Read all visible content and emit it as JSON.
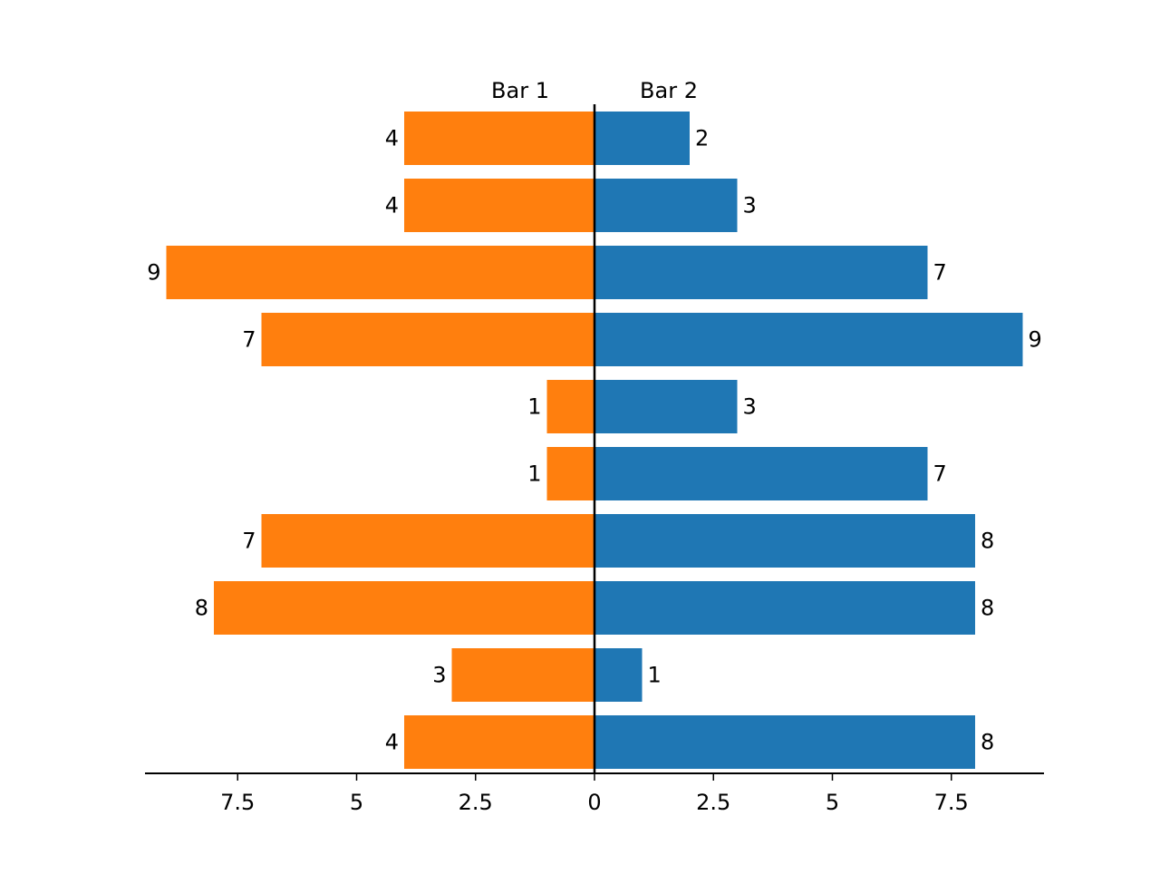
{
  "chart_data": {
    "type": "bar",
    "orientation": "horizontal-diverging",
    "title": "",
    "xlabel": "",
    "ylabel": "",
    "xlim": [
      -9.5,
      9.5
    ],
    "ticks": [
      -7.5,
      -5,
      -2.5,
      0,
      2.5,
      5,
      7.5
    ],
    "tick_labels": [
      "7.5",
      "5",
      "2.5",
      "0",
      "2.5",
      "5",
      "7.5"
    ],
    "grid": false,
    "series": [
      {
        "name": "Bar 1",
        "side": "left",
        "color": "#ff7f0e",
        "values": [
          4,
          4,
          9,
          7,
          1,
          1,
          7,
          8,
          3,
          4
        ]
      },
      {
        "name": "Bar 2",
        "side": "right",
        "color": "#1f77b4",
        "values": [
          2,
          3,
          7,
          9,
          3,
          7,
          8,
          8,
          1,
          8
        ]
      }
    ]
  }
}
